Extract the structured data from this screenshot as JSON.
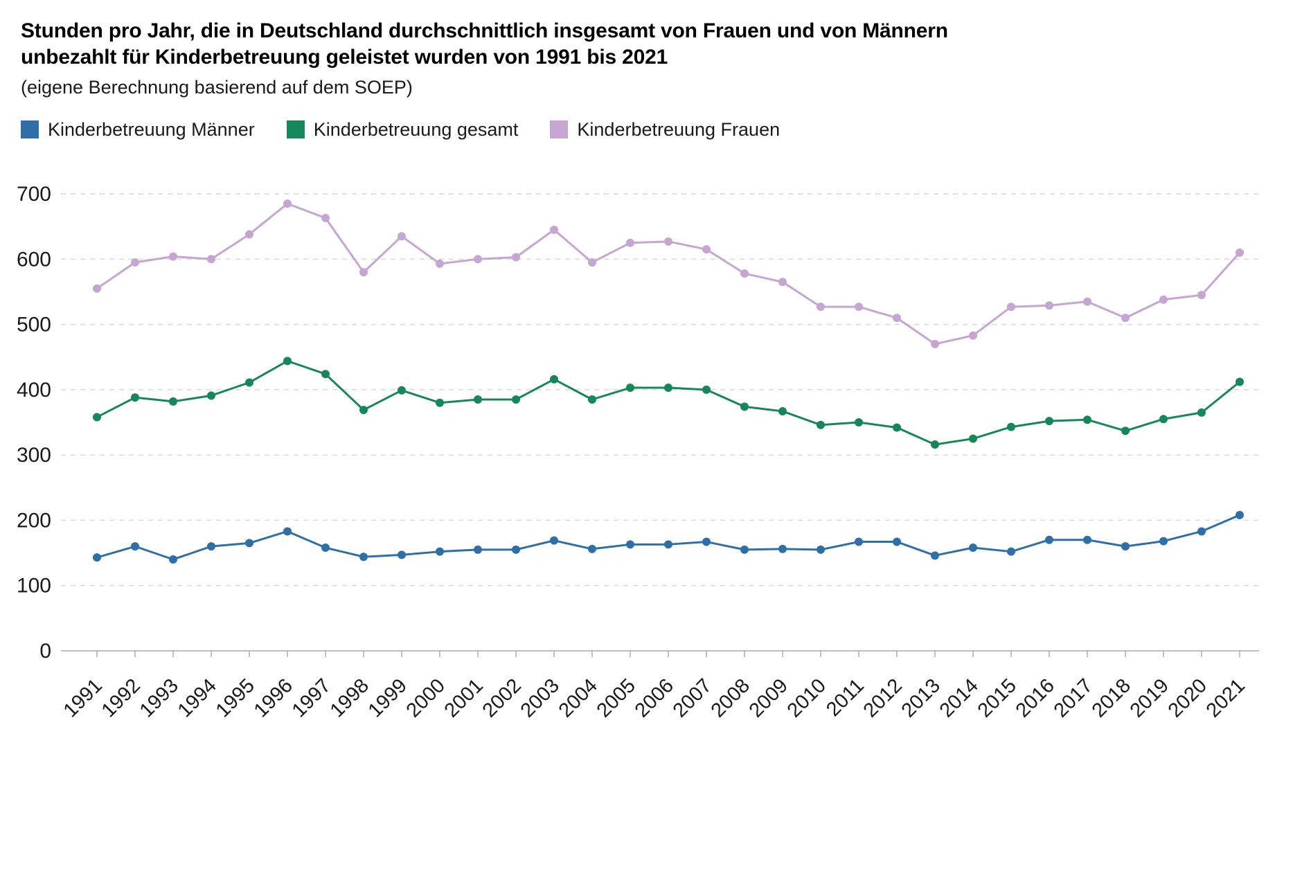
{
  "header": {
    "title": "Stunden pro Jahr, die in Deutschland durchschnittlich insgesamt von Frauen und von Männern unbezahlt für Kinderbetreuung geleistet wurden von 1991 bis 2021",
    "subtitle": "(eigene Berechnung basierend auf dem SOEP)"
  },
  "colors": {
    "grid": "#d6d6d6",
    "axis": "#a8a8a8",
    "tick_text": "#1a1a1a"
  },
  "chart_data": {
    "type": "line",
    "title": "Stunden pro Jahr, die in Deutschland durchschnittlich insgesamt von Frauen und von Männern unbezahlt für Kinderbetreuung geleistet wurden von 1991 bis 2021",
    "subtitle": "(eigene Berechnung basierend auf dem SOEP)",
    "x": [
      1991,
      1992,
      1993,
      1994,
      1995,
      1996,
      1997,
      1998,
      1999,
      2000,
      2001,
      2002,
      2003,
      2004,
      2005,
      2006,
      2007,
      2008,
      2009,
      2010,
      2011,
      2012,
      2013,
      2014,
      2015,
      2016,
      2017,
      2018,
      2019,
      2020,
      2021
    ],
    "series": [
      {
        "name": "Kinderbetreuung Männer",
        "color": "#2e6fa8",
        "values": [
          143,
          160,
          140,
          160,
          165,
          183,
          158,
          144,
          147,
          152,
          155,
          155,
          169,
          156,
          163,
          163,
          167,
          155,
          156,
          155,
          167,
          167,
          146,
          158,
          152,
          170,
          170,
          160,
          168,
          183,
          208
        ]
      },
      {
        "name": "Kinderbetreuung gesamt",
        "color": "#16875a",
        "values": [
          358,
          388,
          382,
          391,
          411,
          444,
          424,
          369,
          399,
          380,
          385,
          385,
          416,
          385,
          403,
          403,
          400,
          374,
          367,
          346,
          350,
          342,
          316,
          325,
          343,
          352,
          354,
          337,
          355,
          365,
          412
        ]
      },
      {
        "name": "Kinderbetreuung Frauen",
        "color": "#c6a5d3",
        "values": [
          555,
          595,
          604,
          600,
          638,
          685,
          663,
          580,
          635,
          593,
          600,
          603,
          645,
          595,
          625,
          627,
          615,
          578,
          565,
          527,
          527,
          510,
          470,
          483,
          527,
          529,
          535,
          510,
          538,
          545,
          610
        ]
      }
    ],
    "ylim": [
      0,
      700
    ],
    "yticks": [
      0,
      100,
      200,
      300,
      400,
      500,
      600,
      700
    ],
    "xlabel": "",
    "ylabel": "",
    "grid": "horizontal dashed",
    "legend_position": "top"
  }
}
